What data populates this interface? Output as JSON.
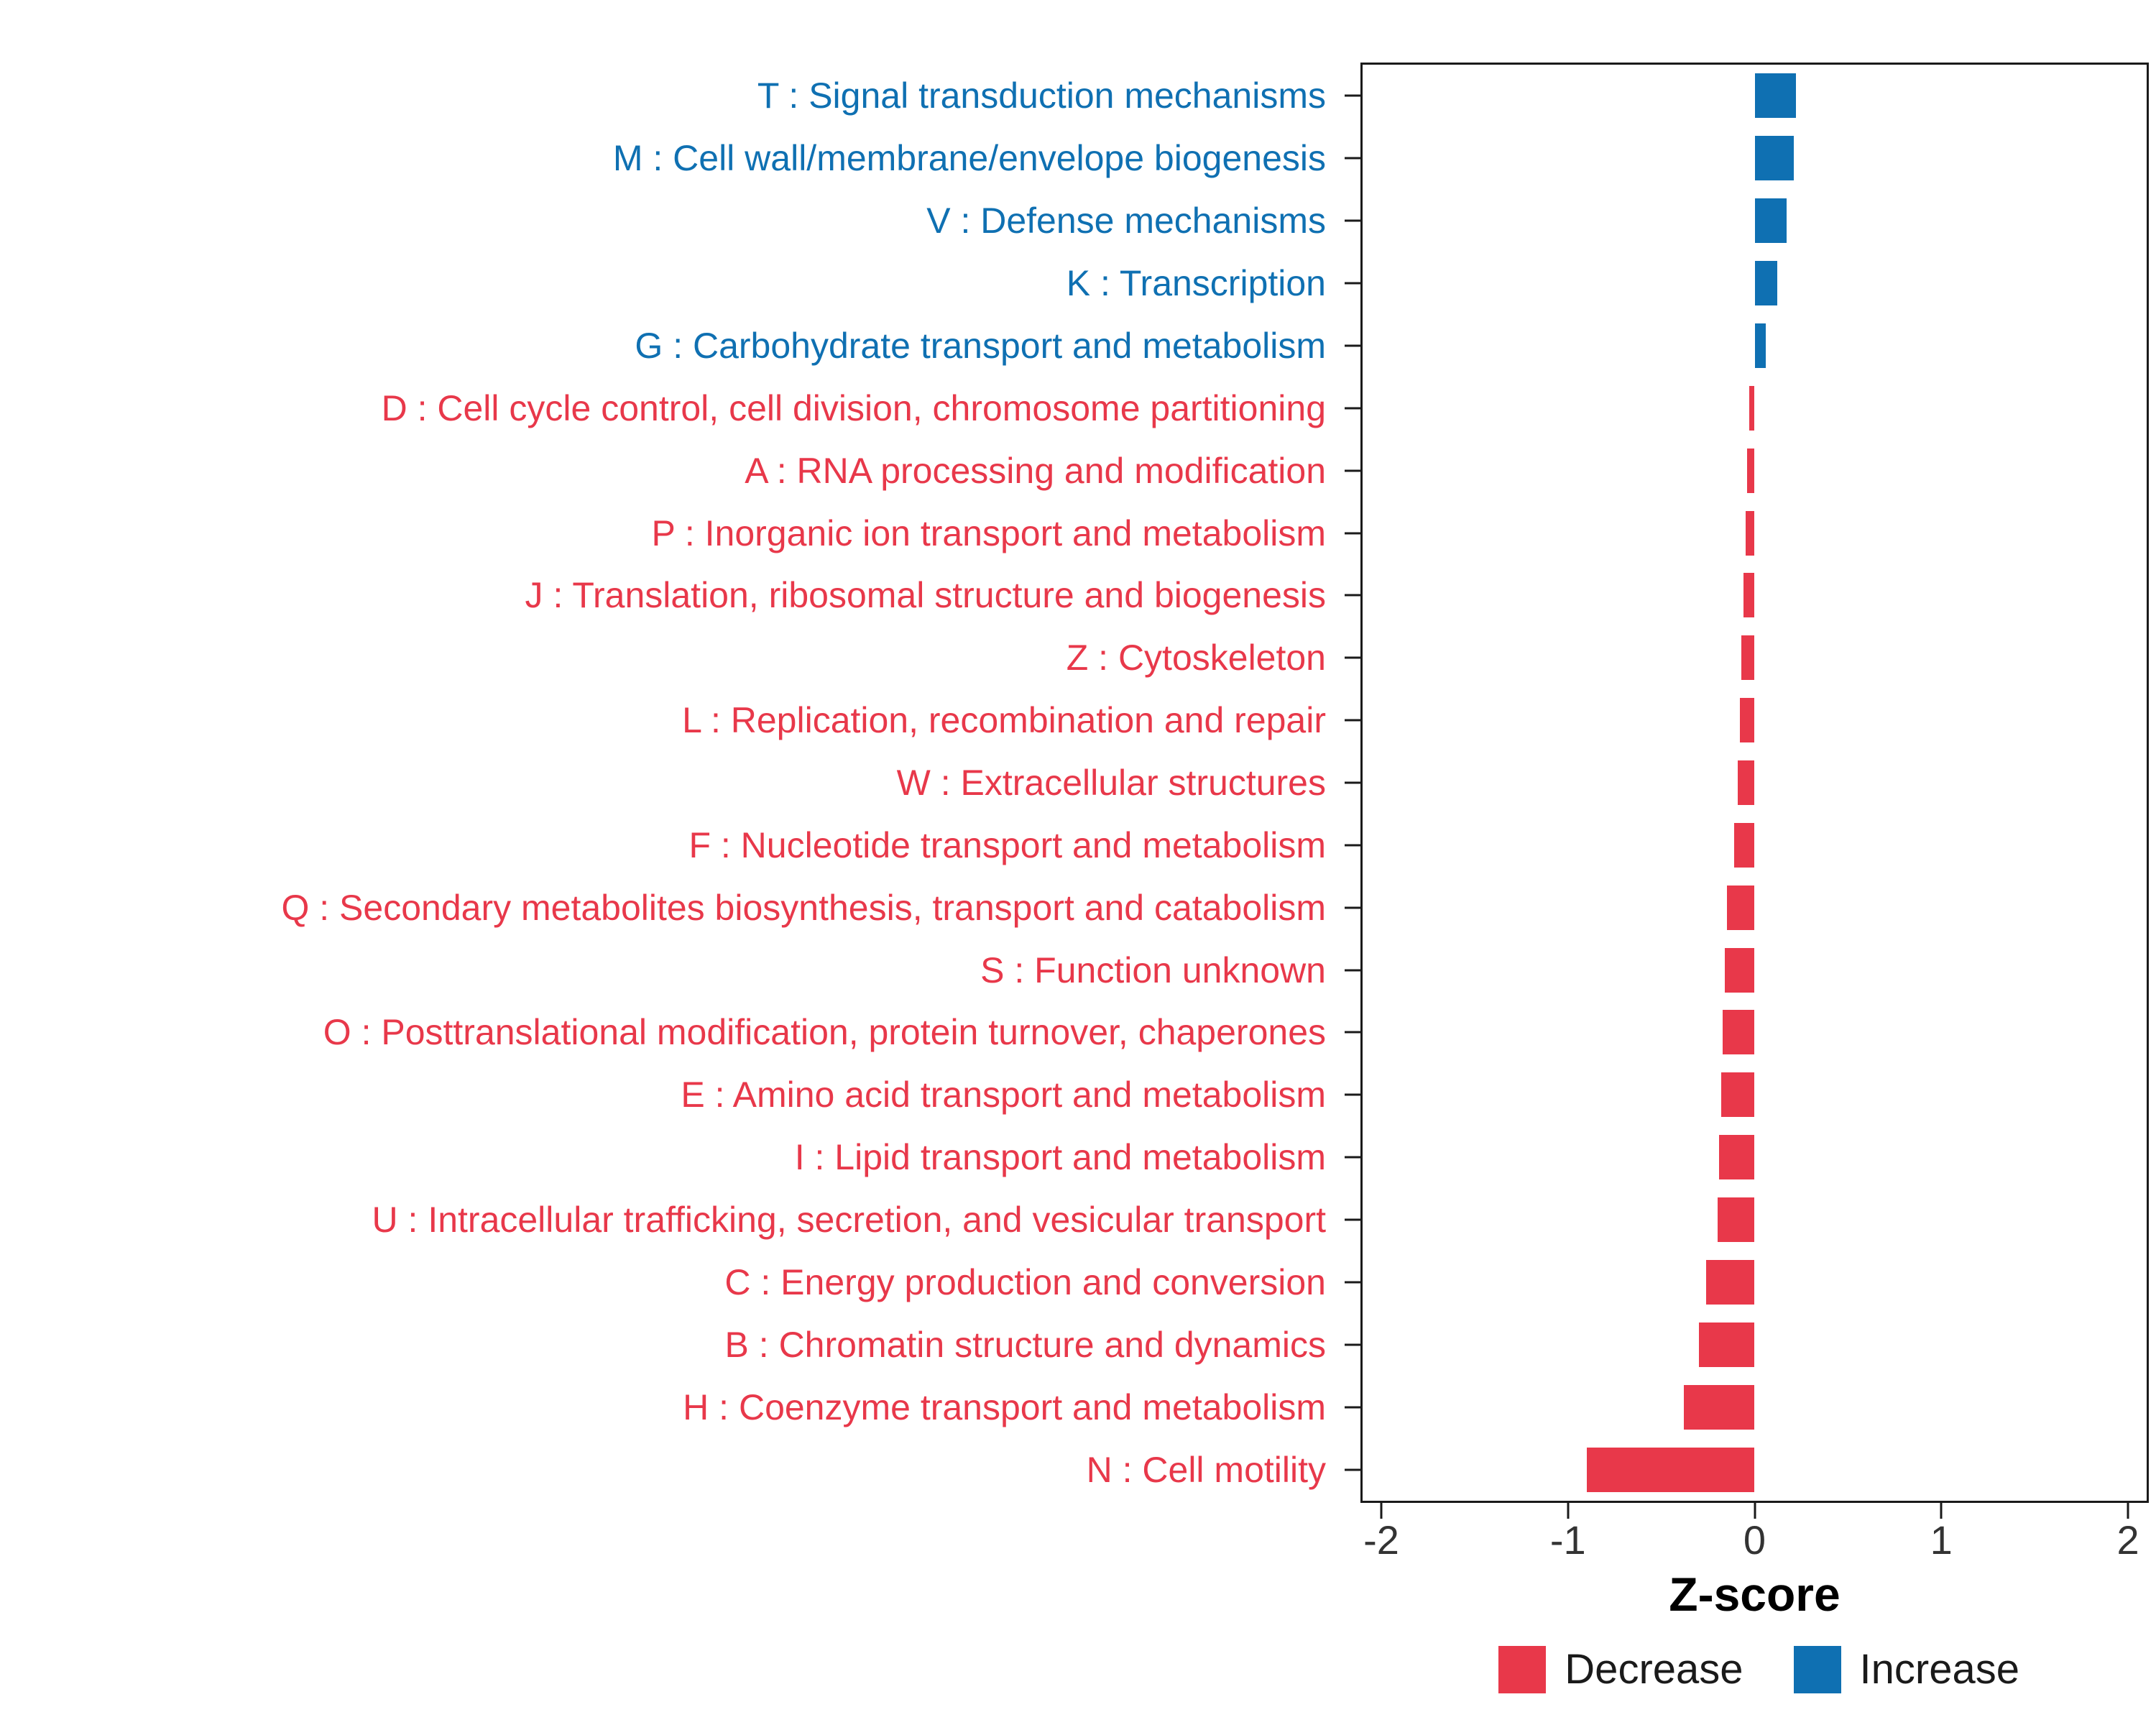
{
  "chart_data": {
    "type": "bar",
    "orientation": "horizontal",
    "title": "",
    "xlabel": "Z-score",
    "xlim": [
      -2.1,
      2.1
    ],
    "x_ticks": [
      "-2",
      "-1",
      "0",
      "1",
      "2"
    ],
    "x_tick_values": [
      -2,
      -1,
      0,
      1,
      2
    ],
    "grid": false,
    "categories": [
      "T : Signal transduction mechanisms",
      "M : Cell wall/membrane/envelope biogenesis",
      "V : Defense mechanisms",
      "K : Transcription",
      "G : Carbohydrate transport and metabolism",
      "D : Cell cycle control, cell division, chromosome partitioning",
      "A : RNA processing and modification",
      "P : Inorganic ion transport and metabolism",
      "J : Translation, ribosomal structure and biogenesis",
      "Z : Cytoskeleton",
      "L : Replication, recombination and repair",
      "W : Extracellular structures",
      "F : Nucleotide transport and metabolism",
      "Q : Secondary metabolites biosynthesis, transport and catabolism",
      "S : Function unknown",
      "O : Posttranslational modification, protein turnover, chaperones",
      "E : Amino acid transport and metabolism",
      "I : Lipid transport and metabolism",
      "U : Intracellular trafficking, secretion, and vesicular transport",
      "C : Energy production and conversion",
      "B : Chromatin structure and dynamics",
      "H : Coenzyme transport and metabolism",
      "N : Cell motility"
    ],
    "values": [
      0.22,
      0.21,
      0.17,
      0.12,
      0.06,
      -0.03,
      -0.04,
      -0.05,
      -0.06,
      -0.07,
      -0.08,
      -0.09,
      -0.11,
      -0.15,
      -0.16,
      -0.17,
      -0.18,
      -0.19,
      -0.2,
      -0.26,
      -0.3,
      -0.38,
      -0.9
    ],
    "directions": [
      "increase",
      "increase",
      "increase",
      "increase",
      "increase",
      "decrease",
      "decrease",
      "decrease",
      "decrease",
      "decrease",
      "decrease",
      "decrease",
      "decrease",
      "decrease",
      "decrease",
      "decrease",
      "decrease",
      "decrease",
      "decrease",
      "decrease",
      "decrease",
      "decrease",
      "decrease"
    ],
    "colors": {
      "decrease": "#E8384A",
      "increase": "#0F70B2"
    },
    "legend": {
      "position": "bottom-right",
      "items": [
        {
          "label": "Decrease",
          "key": "decrease"
        },
        {
          "label": "Increase",
          "key": "increase"
        }
      ]
    }
  }
}
